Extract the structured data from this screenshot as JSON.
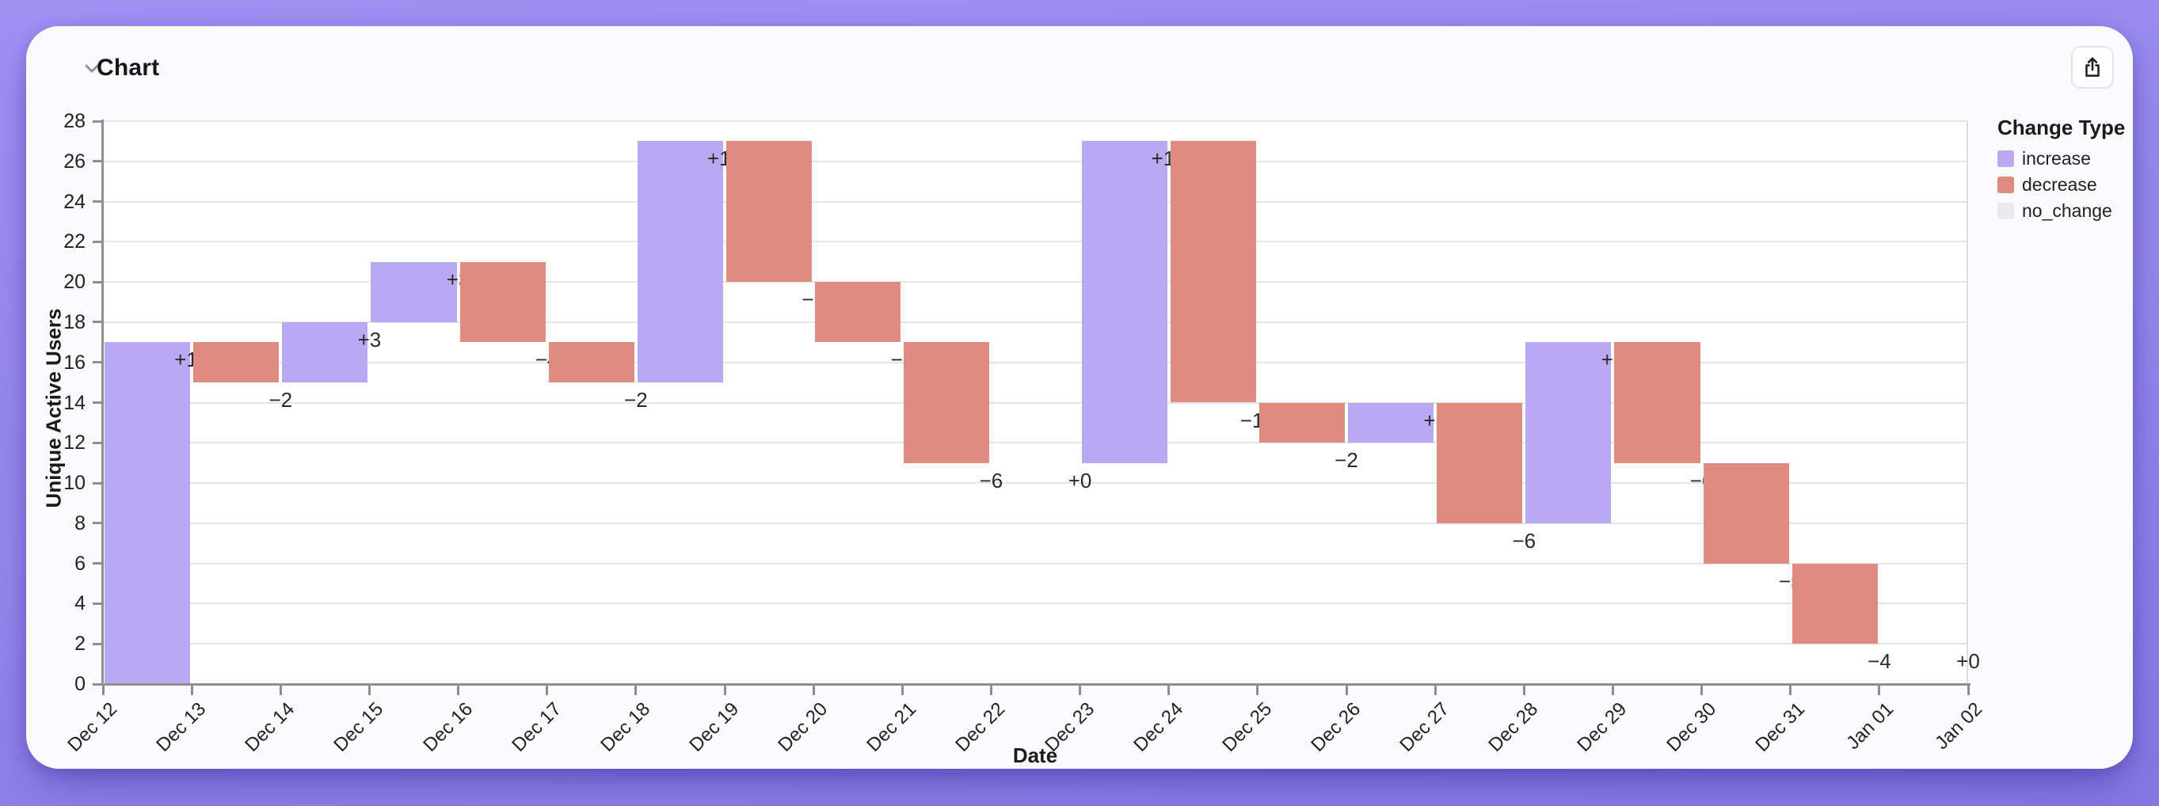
{
  "header": {
    "title": "Chart"
  },
  "legend": {
    "title": "Change Type",
    "items": [
      {
        "label": "increase",
        "color": "#b7a9f2"
      },
      {
        "label": "decrease",
        "color": "#de8b80"
      },
      {
        "label": "no_change",
        "color": "#e9e9ee"
      }
    ]
  },
  "chart_data": {
    "type": "bar",
    "subtype": "waterfall",
    "title": "Chart",
    "xlabel": "Date",
    "ylabel": "Unique Active Users",
    "x_tick_labels": [
      "Dec 12",
      "Dec 13",
      "Dec 14",
      "Dec 15",
      "Dec 16",
      "Dec 17",
      "Dec 18",
      "Dec 19",
      "Dec 20",
      "Dec 21",
      "Dec 22",
      "Dec 23",
      "Dec 24",
      "Dec 25",
      "Dec 26",
      "Dec 27",
      "Dec 28",
      "Dec 29",
      "Dec 30",
      "Dec 31",
      "Jan 01",
      "Jan 02"
    ],
    "categories": [
      "Dec 12",
      "Dec 13",
      "Dec 14",
      "Dec 15",
      "Dec 16",
      "Dec 17",
      "Dec 18",
      "Dec 19",
      "Dec 20",
      "Dec 21",
      "Dec 22",
      "Dec 23",
      "Dec 24",
      "Dec 25",
      "Dec 26",
      "Dec 27",
      "Dec 28",
      "Dec 29",
      "Dec 30",
      "Dec 31",
      "Jan 01"
    ],
    "start_value": 0,
    "changes": [
      17,
      -2,
      3,
      3,
      -4,
      -2,
      12,
      -7,
      -3,
      -6,
      0,
      16,
      -13,
      -2,
      2,
      -6,
      9,
      -6,
      -5,
      -4,
      0
    ],
    "labels": [
      "+17",
      "−2",
      "+3",
      "+3",
      "−4",
      "−2",
      "+12",
      "−7",
      "−3",
      "−6",
      "+0",
      "+16",
      "−13",
      "−2",
      "+2",
      "−6",
      "+9",
      "−6",
      "−5",
      "−4",
      "+0"
    ],
    "levels_after": [
      17,
      15,
      18,
      21,
      17,
      15,
      27,
      20,
      17,
      11,
      11,
      27,
      14,
      12,
      14,
      8,
      17,
      11,
      6,
      2,
      2
    ],
    "ylim": [
      0,
      28
    ],
    "ytick_step": 2,
    "grid": "horizontal",
    "legend_position": "right",
    "colors": {
      "increase": "#b7a9f2",
      "decrease": "#de8b80",
      "no_change": "#e9e9ee"
    }
  }
}
